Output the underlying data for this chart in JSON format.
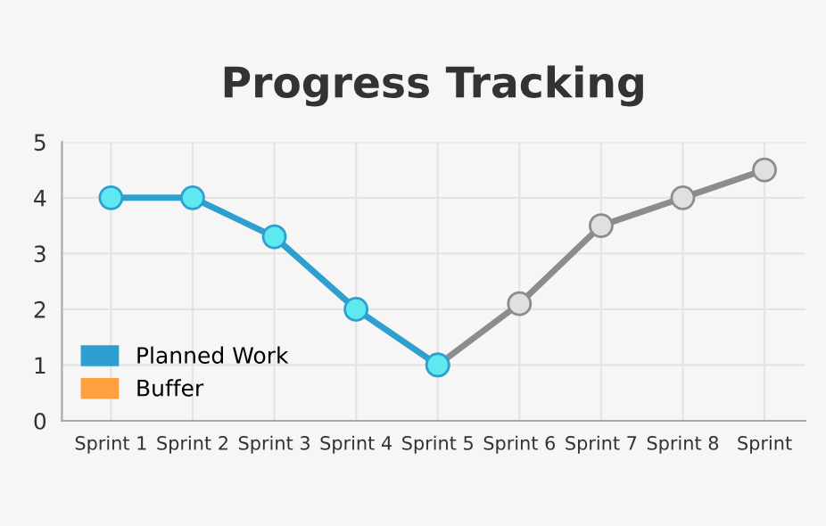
{
  "chart_data": {
    "type": "line",
    "title": "Progress Tracking",
    "categories": [
      "Sprint 1",
      "Sprint 2",
      "Sprint 3",
      "Sprint 4",
      "Sprint 5",
      "Sprint 6",
      "Sprint 7",
      "Sprint 8",
      "Sprint"
    ],
    "series": [
      {
        "name": "Planned Work",
        "color": "#2e9fcf",
        "values": [
          4,
          4,
          3.3,
          2,
          1,
          null,
          null,
          null,
          null
        ]
      },
      {
        "name": "Buffer",
        "color": "#ffa040",
        "values": [
          null,
          null,
          null,
          null,
          null,
          null,
          null,
          null,
          null
        ]
      },
      {
        "color": "#8c8c8c",
        "values": [
          null,
          null,
          null,
          null,
          1,
          2.1,
          3.5,
          4,
          4.5
        ]
      }
    ],
    "ylim": [
      0,
      5
    ],
    "yticks": [
      0,
      1,
      2,
      3,
      4,
      5
    ],
    "grid": true,
    "legend": "bottom left",
    "marker": "circle",
    "line_style": "solid"
  }
}
